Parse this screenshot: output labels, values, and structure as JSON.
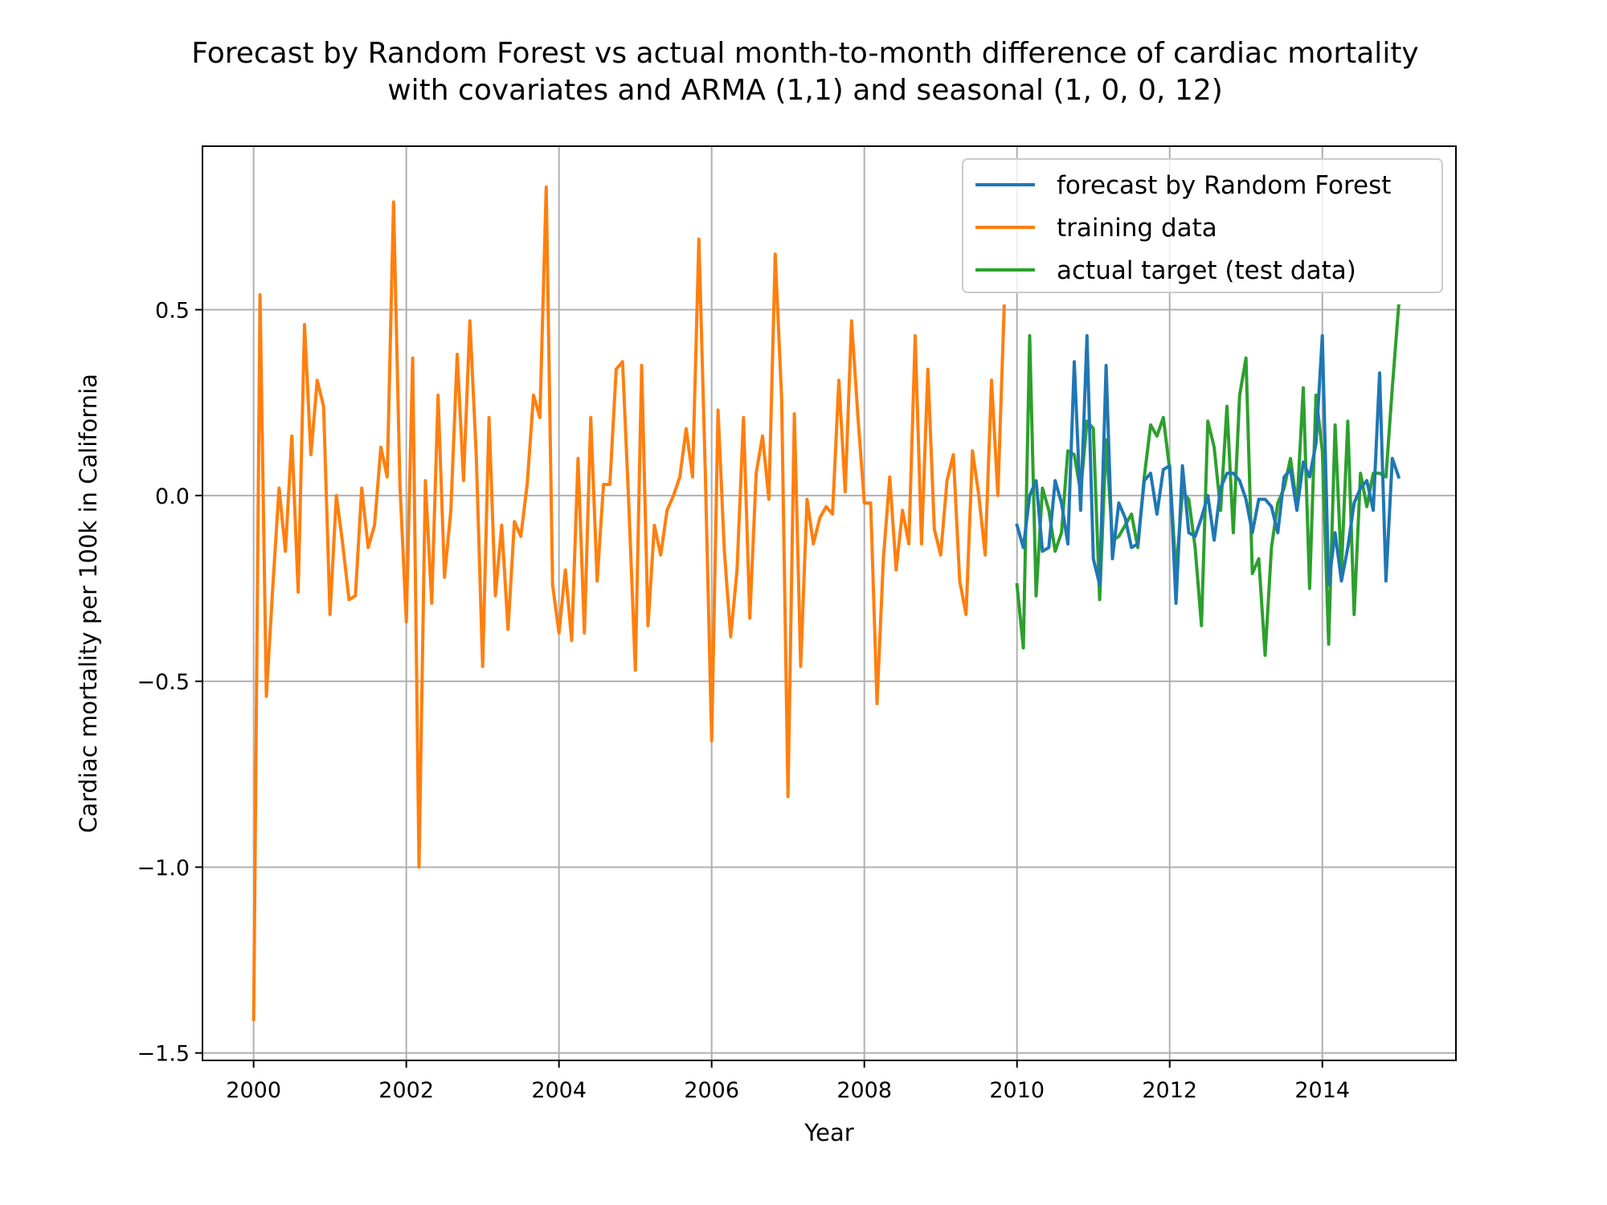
{
  "chart_data": {
    "type": "line",
    "title": "Forecast by Random Forest vs actual month-to-month difference of cardiac mortality\nwith covariates and ARMA (1,1) and seasonal (1, 0, 0, 12)",
    "xlabel": "Year",
    "ylabel": "Cardiac mortality per 100k in California",
    "xlim": [
      1999.33,
      2015.75
    ],
    "ylim": [
      -1.52,
      0.94
    ],
    "xticks": [
      2000,
      2002,
      2004,
      2006,
      2008,
      2010,
      2012,
      2014
    ],
    "xtick_labels": [
      "2000",
      "2002",
      "2004",
      "2006",
      "2008",
      "2010",
      "2012",
      "2014"
    ],
    "yticks": [
      0.5,
      0.0,
      -0.5,
      -1.0,
      -1.5
    ],
    "ytick_labels": [
      "0.5",
      "0.0",
      "−0.5",
      "−1.0",
      "−1.5"
    ],
    "grid": true,
    "legend_position": "top-right",
    "series": [
      {
        "name": "forecast by Random Forest",
        "color": "#1f77b4",
        "x_start": 2010.0,
        "x_step": 0.08333,
        "values": [
          -0.08,
          -0.14,
          0.0,
          0.04,
          -0.15,
          -0.14,
          0.04,
          -0.02,
          -0.13,
          0.36,
          -0.04,
          0.43,
          -0.17,
          -0.24,
          0.35,
          -0.17,
          -0.02,
          -0.06,
          -0.14,
          -0.13,
          0.04,
          0.06,
          -0.05,
          0.07,
          0.08,
          -0.29,
          0.08,
          -0.1,
          -0.11,
          -0.06,
          0.0,
          -0.12,
          0.02,
          0.06,
          0.06,
          0.04,
          -0.01,
          -0.1,
          -0.01,
          -0.01,
          -0.03,
          -0.1,
          0.05,
          0.07,
          -0.04,
          0.09,
          0.05,
          0.14,
          0.43,
          -0.24,
          -0.1,
          -0.23,
          -0.14,
          -0.02,
          0.02,
          0.04,
          -0.04,
          0.33,
          -0.23,
          0.1,
          0.05
        ]
      },
      {
        "name": "training data",
        "color": "#ff7f0e",
        "x_start": 2000.0,
        "x_step": 0.08333,
        "values": [
          -1.41,
          0.54,
          -0.54,
          -0.25,
          0.02,
          -0.15,
          0.16,
          -0.26,
          0.46,
          0.11,
          0.31,
          0.24,
          -0.32,
          0.0,
          -0.13,
          -0.28,
          -0.27,
          0.02,
          -0.14,
          -0.08,
          0.13,
          0.05,
          0.79,
          0.03,
          -0.34,
          0.37,
          -1.0,
          0.04,
          -0.29,
          0.27,
          -0.22,
          -0.04,
          0.38,
          0.04,
          0.47,
          0.11,
          -0.46,
          0.21,
          -0.27,
          -0.08,
          -0.36,
          -0.07,
          -0.11,
          0.03,
          0.27,
          0.21,
          0.83,
          -0.24,
          -0.37,
          -0.2,
          -0.39,
          0.1,
          -0.37,
          0.21,
          -0.23,
          0.03,
          0.03,
          0.34,
          0.36,
          -0.03,
          -0.47,
          0.35,
          -0.35,
          -0.08,
          -0.16,
          -0.04,
          0.0,
          0.05,
          0.18,
          0.05,
          0.69,
          0.06,
          -0.66,
          0.23,
          -0.15,
          -0.38,
          -0.2,
          0.21,
          -0.33,
          0.06,
          0.16,
          -0.01,
          0.65,
          0.26,
          -0.81,
          0.22,
          -0.46,
          -0.01,
          -0.13,
          -0.06,
          -0.03,
          -0.05,
          0.31,
          0.01,
          0.47,
          0.21,
          -0.02,
          -0.02,
          -0.56,
          -0.17,
          0.05,
          -0.2,
          -0.04,
          -0.13,
          0.43,
          -0.13,
          0.34,
          -0.09,
          -0.16,
          0.04,
          0.11,
          -0.23,
          -0.32,
          0.12,
          0.0,
          -0.16,
          0.31,
          0.0,
          0.51
        ]
      },
      {
        "name": "actual target (test data)",
        "color": "#2ca02c",
        "x_start": 2010.0,
        "x_step": 0.08333,
        "values": [
          -0.24,
          -0.41,
          0.43,
          -0.27,
          0.02,
          -0.04,
          -0.15,
          -0.1,
          0.12,
          0.11,
          0.01,
          0.2,
          0.18,
          -0.28,
          0.15,
          -0.12,
          -0.11,
          -0.08,
          -0.05,
          -0.14,
          0.05,
          0.19,
          0.16,
          0.21,
          0.07,
          -0.21,
          0.01,
          -0.01,
          -0.14,
          -0.35,
          0.2,
          0.13,
          -0.04,
          0.24,
          -0.1,
          0.27,
          0.37,
          -0.21,
          -0.17,
          -0.43,
          -0.14,
          -0.02,
          0.02,
          0.1,
          -0.03,
          0.29,
          -0.25,
          0.27,
          0.12,
          -0.4,
          0.19,
          -0.2,
          0.2,
          -0.32,
          0.06,
          -0.03,
          0.06,
          0.06,
          0.05,
          0.29,
          0.51
        ]
      }
    ]
  }
}
